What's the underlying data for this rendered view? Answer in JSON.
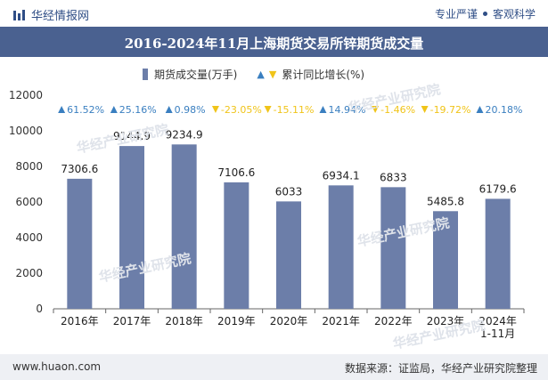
{
  "header": {
    "brand": "华经情报网",
    "tagline_left": "专业严谨",
    "tagline_right": "客观科学"
  },
  "footer": {
    "url": "www.huaon.com",
    "source": "数据来源：证监局，华经产业研究院整理"
  },
  "watermark": "华经产业研究院",
  "colors": {
    "bar": "#6c7ea9",
    "title_bg": "#4a6190",
    "up": "#3a7fc0",
    "down": "#f0c419"
  },
  "chart_data": {
    "type": "bar",
    "title": "2016-2024年11月上海期货交易所锌期货成交量",
    "categories": [
      "2016年",
      "2017年",
      "2018年",
      "2019年",
      "2020年",
      "2021年",
      "2022年",
      "2023年",
      "2024年\n1-11月"
    ],
    "series": [
      {
        "name": "期货成交量(万手)",
        "values": [
          7306.6,
          9144.9,
          9234.9,
          7106.6,
          6033,
          6934.1,
          6833,
          5485.8,
          6179.6
        ],
        "labels": [
          "7306.6",
          "9144.9",
          "9234.9",
          "7106.6",
          "6033",
          "6934.1",
          "6833",
          "5485.8",
          "6179.6"
        ]
      },
      {
        "name": "累计同比增长(%)",
        "values": [
          61.52,
          25.16,
          0.98,
          -23.05,
          -15.11,
          14.94,
          -1.46,
          -19.72,
          20.18
        ],
        "labels": [
          "61.52%",
          "25.16%",
          "0.98%",
          "-23.05%",
          "-15.11%",
          "14.94%",
          "-1.46%",
          "-19.72%",
          "20.18%"
        ]
      }
    ],
    "ylim": [
      0,
      12000
    ],
    "yticks": [
      "0",
      "2000",
      "4000",
      "6000",
      "8000",
      "10000",
      "12000"
    ],
    "ytick_values": [
      0,
      2000,
      4000,
      6000,
      8000,
      10000,
      12000
    ],
    "grid": false,
    "legend_position": "top-center"
  }
}
